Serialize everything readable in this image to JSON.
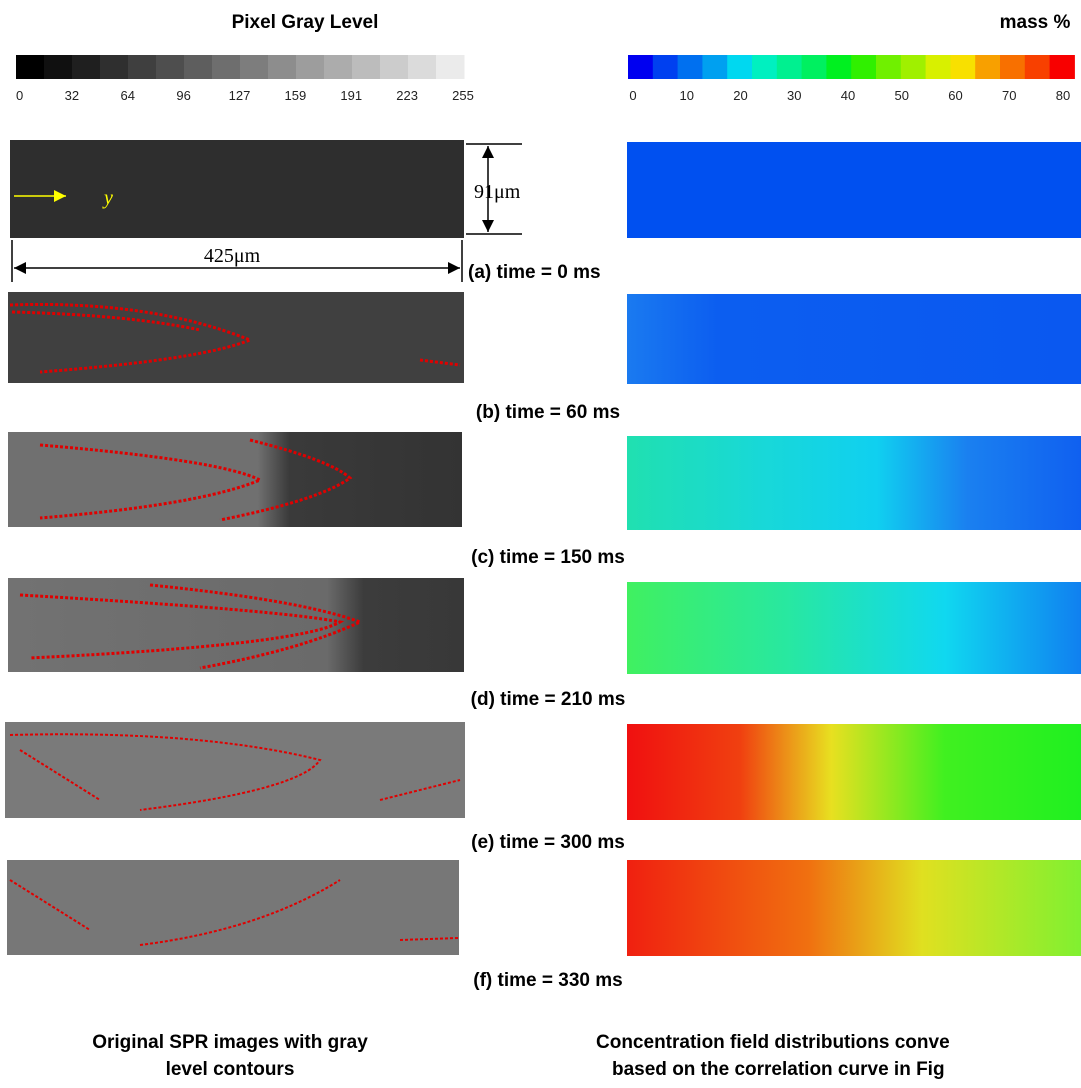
{
  "left_header": "Pixel Gray Level",
  "right_header": "mass %",
  "gray_scale_ticks": [
    "0",
    "32",
    "64",
    "96",
    "127",
    "159",
    "191",
    "223",
    "255"
  ],
  "mass_scale_ticks": [
    "0",
    "10",
    "20",
    "30",
    "40",
    "50",
    "60",
    "70",
    "80"
  ],
  "dimensions": {
    "height": "91μm",
    "width": "425μm",
    "axis": "y"
  },
  "panels": [
    "(a) time = 0 ms",
    "(b) time = 60 ms",
    "(c) time = 150 ms",
    "(d) time = 210 ms",
    "(e) time = 300 ms",
    "(f) time = 330 ms"
  ],
  "captions": {
    "left": [
      "Original SPR images with gray",
      "level contours"
    ],
    "right": [
      "Concentration field distributions conve",
      "based on the correlation curve in Fig"
    ]
  }
}
